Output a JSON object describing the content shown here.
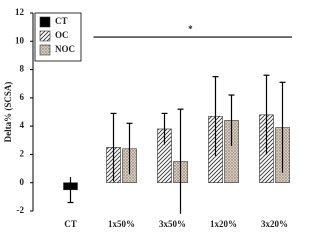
{
  "chart_data": {
    "type": "bar",
    "y_label": "Delta% (SCSA)",
    "categories": [
      "CT",
      "1x50%",
      "3x50%",
      "1x20%",
      "3x20%"
    ],
    "series": [
      {
        "name": "CT",
        "color": "#000000",
        "pattern": "solid",
        "values": [
          -0.5,
          null,
          null,
          null,
          null
        ],
        "errors": [
          0.9,
          null,
          null,
          null,
          null
        ]
      },
      {
        "name": "OC",
        "color": "#333333",
        "pattern": "hatch",
        "values": [
          null,
          2.5,
          3.8,
          4.7,
          4.8
        ],
        "errors": [
          null,
          2.4,
          1.1,
          2.8,
          2.8
        ]
      },
      {
        "name": "NOC",
        "color": "#8a7a6a",
        "pattern": "dots",
        "values": [
          null,
          2.4,
          1.5,
          4.4,
          3.9
        ],
        "errors": [
          null,
          1.8,
          3.7,
          1.8,
          3.2
        ]
      }
    ],
    "ylim": [
      -2,
      12
    ],
    "yticks": [
      -2,
      0,
      2,
      4,
      6,
      8,
      10,
      12
    ],
    "annotation": {
      "text": "*",
      "y": 10.3
    },
    "legend": "top-left"
  }
}
